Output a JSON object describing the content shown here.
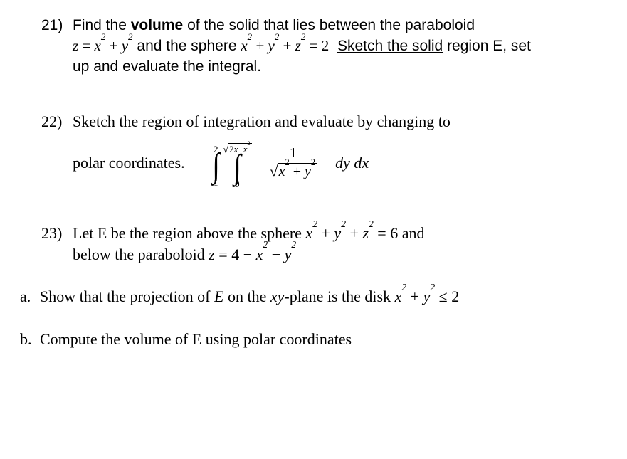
{
  "p21": {
    "number": "21)",
    "line1_a": "Find the ",
    "line1_bold": "volume",
    "line1_b": " of the solid that lies between the paraboloid",
    "eq1_html": "<span class='math'>z <span class='up'>=</span> x<sup>2</sup> <span class='up'>+</span> y<sup>2</sup></span>",
    "mid": " and the sphere ",
    "eq2_html": "<span class='math'>x<sup>2</sup> <span class='up'>+</span> y<sup>2</sup> <span class='up'>+</span> z<sup>2</sup> <span class='up'>= 2</span></span>",
    "sketch": "Sketch the solid",
    "line2_a": " region E, set",
    "line3": "up and evaluate the integral."
  },
  "p22": {
    "number": "22)",
    "line1": "Sketch the region of integration and evaluate by changing to",
    "lead": "polar coordinates.",
    "outer_lower": "1",
    "outer_upper": "2",
    "inner_lower": "0",
    "inner_upper_html": "<span class='sqrt'><span class='radical'>&#8730;</span><span class='radicand'>2<i>x</i>&minus;<i>x</i><sup>2</sup></span></span>",
    "frac_num": "1",
    "frac_den_html": "<span class='sqrt'><span class='radical'>&#8730;</span><span class='radicand'><i>x</i><sup>2</sup> + <i>y</i><sup>2</sup></span></span>",
    "diff_html": "<span class='math'>dy&nbsp;dx</span>"
  },
  "p23": {
    "number": "23)",
    "line1_a": "Let E be the region above the sphere ",
    "eq1_html": "<span class='math'>x<sup>2</sup> <span class='up'>+</span> y<sup>2</sup> <span class='up'>+</span> z<sup>2</sup> <span class='up'>= 6</span></span>",
    "line1_b": " and",
    "line2_a": "below the paraboloid ",
    "eq2_html": "<span class='math'>z <span class='up'>= 4 &minus;</span> x<sup>2</sup> <span class='up'>&minus;</span> y<sup>2</sup></span>",
    "a_label": "a.",
    "a_text_a": "Show that the projection of ",
    "a_text_i": "E",
    "a_text_b": " on the ",
    "a_text_i2": "xy",
    "a_text_c": "-plane is the disk ",
    "a_eq_html": "<span class='math'>x<sup>2</sup> <span class='up'>+</span> y<sup>2</sup> <span class='up'>&le; 2</span></span>",
    "b_label": "b.",
    "b_text": "Compute the volume of  E using polar coordinates"
  }
}
